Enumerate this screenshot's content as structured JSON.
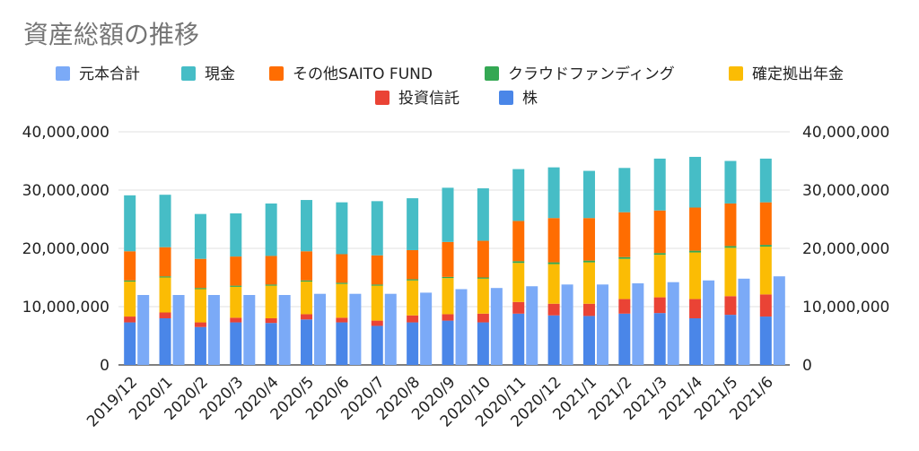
{
  "chart_data": {
    "type": "bar",
    "title": "資産総額の推移",
    "categories": [
      "2019/12",
      "2020/1",
      "2020/2",
      "2020/3",
      "2020/4",
      "2020/5",
      "2020/6",
      "2020/7",
      "2020/8",
      "2020/9",
      "2020/10",
      "2020/11",
      "2020/12",
      "2021/1",
      "2021/2",
      "2021/3",
      "2021/4",
      "2021/5",
      "2021/6"
    ],
    "stacked_series": [
      {
        "name": "株",
        "color": "#4a86e8",
        "values": [
          7300000,
          8000000,
          6500000,
          7300000,
          7200000,
          7800000,
          7300000,
          6700000,
          7300000,
          7600000,
          7300000,
          8800000,
          8500000,
          8400000,
          8800000,
          8900000,
          8000000,
          8600000,
          8300000
        ]
      },
      {
        "name": "投資信託",
        "color": "#ea4335",
        "values": [
          1000000,
          1000000,
          800000,
          800000,
          800000,
          900000,
          800000,
          900000,
          1200000,
          1100000,
          1500000,
          2000000,
          2000000,
          2100000,
          2500000,
          2700000,
          3300000,
          3200000,
          3800000
        ]
      },
      {
        "name": "確定拠出年金",
        "color": "#fbbc04",
        "values": [
          6000000,
          6000000,
          5700000,
          5300000,
          5600000,
          5600000,
          5800000,
          6000000,
          6000000,
          6200000,
          6000000,
          6700000,
          6800000,
          7100000,
          6900000,
          7300000,
          8000000,
          8300000,
          8200000
        ]
      },
      {
        "name": "クラウドファンディング",
        "color": "#34a853",
        "values": [
          200000,
          200000,
          200000,
          200000,
          200000,
          200000,
          200000,
          200000,
          200000,
          200000,
          200000,
          300000,
          300000,
          300000,
          300000,
          300000,
          300000,
          300000,
          300000
        ]
      },
      {
        "name": "その他SAITO FUND",
        "color": "#ff6d01",
        "values": [
          5000000,
          5000000,
          5000000,
          5000000,
          4900000,
          5000000,
          4900000,
          5000000,
          5000000,
          6000000,
          6300000,
          6900000,
          7600000,
          7300000,
          7700000,
          7300000,
          7400000,
          7300000,
          7300000
        ]
      },
      {
        "name": "現金",
        "color": "#46bdc6",
        "values": [
          9600000,
          9000000,
          7700000,
          7400000,
          9000000,
          8800000,
          8900000,
          9300000,
          8900000,
          9300000,
          9000000,
          8900000,
          8700000,
          8100000,
          7600000,
          8900000,
          8700000,
          7300000,
          7500000
        ]
      }
    ],
    "line_series": {
      "name": "元本合計",
      "color": "#7baaf7",
      "values": [
        12000000,
        12000000,
        12000000,
        12000000,
        12000000,
        12200000,
        12200000,
        12200000,
        12400000,
        13000000,
        13200000,
        13500000,
        13800000,
        13800000,
        14000000,
        14200000,
        14500000,
        14800000,
        15200000
      ]
    },
    "legend": [
      {
        "name": "元本合計",
        "color": "#7baaf7"
      },
      {
        "name": "現金",
        "color": "#46bdc6"
      },
      {
        "name": "その他SAITO FUND",
        "color": "#ff6d01"
      },
      {
        "name": "クラウドファンディング",
        "color": "#34a853"
      },
      {
        "name": "確定拠出年金",
        "color": "#fbbc04"
      },
      {
        "name": "投資信託",
        "color": "#ea4335"
      },
      {
        "name": "株",
        "color": "#4a86e8"
      }
    ],
    "legend_position": "top",
    "ylim": [
      0,
      40000000
    ],
    "y_ticks": [
      "0",
      "10,000,000",
      "20,000,000",
      "30,000,000",
      "40,000,000"
    ],
    "y_tick_values": [
      0,
      10000000,
      20000000,
      30000000,
      40000000
    ],
    "grid": true,
    "secondary_axis": true
  }
}
